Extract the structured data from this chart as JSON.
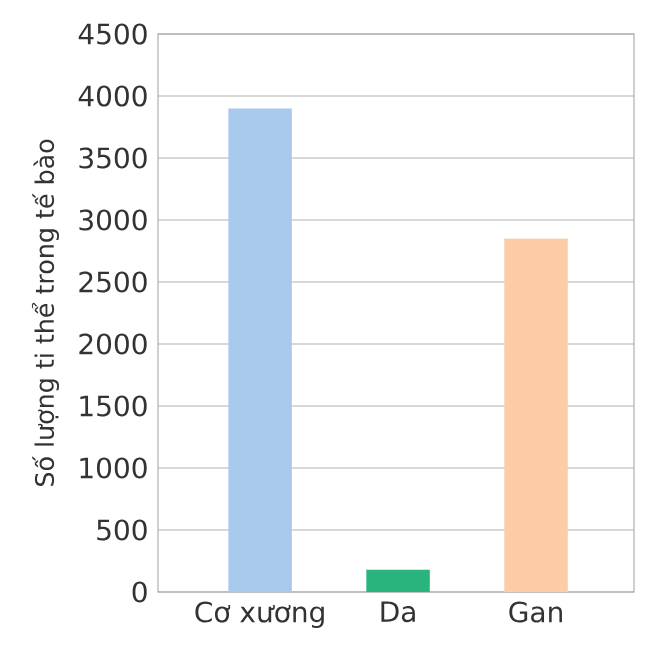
{
  "chart_data": {
    "type": "bar",
    "ylabel": "Số lượng ti thể trong tế bào",
    "categories": [
      "Cơ xương",
      "Da",
      "Gan"
    ],
    "values": [
      3900,
      180,
      2850
    ],
    "colors": [
      "#a8c8ec",
      "#2bb37e",
      "#fccca4"
    ],
    "ylim": [
      0,
      4500
    ],
    "yticks": [
      0,
      500,
      1000,
      1500,
      2000,
      2500,
      3000,
      3500,
      4000,
      4500
    ],
    "grid": "y"
  }
}
